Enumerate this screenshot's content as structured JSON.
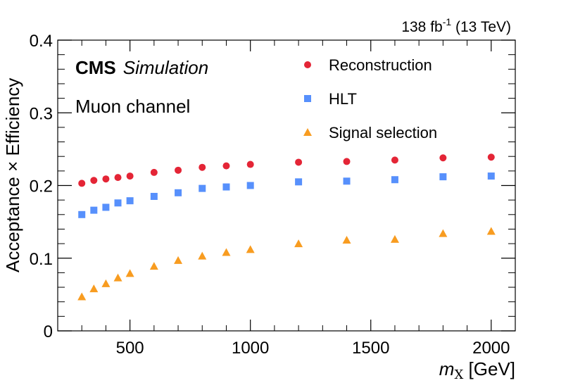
{
  "chart_data": {
    "type": "scatter",
    "title": "",
    "top_right_label": "138 fb",
    "top_right_sup": "-1",
    "top_right_suffix": " (13 TeV)",
    "experiment": "CMS",
    "experiment_extra": "Simulation",
    "channel": "Muon channel",
    "xlabel_var": "m",
    "xlabel_sub": "X",
    "xlabel_unit": " [GeV]",
    "ylabel": "Acceptance × Efficiency",
    "xlim": [
      200,
      2100
    ],
    "ylim": [
      0,
      0.4
    ],
    "x_ticks": [
      500,
      1000,
      1500,
      2000
    ],
    "x_tick_labels": [
      "500",
      "1000",
      "1500",
      "2000"
    ],
    "y_ticks": [
      0,
      0.1,
      0.2,
      0.3,
      0.4
    ],
    "y_tick_labels": [
      "0",
      "0.1",
      "0.2",
      "0.3",
      "0.4"
    ],
    "x": [
      300,
      350,
      400,
      450,
      500,
      600,
      700,
      800,
      900,
      1000,
      1200,
      1400,
      1600,
      1800,
      2000
    ],
    "series": [
      {
        "name": "Reconstruction",
        "marker": "circle",
        "color": "#e42536",
        "values": [
          0.203,
          0.207,
          0.209,
          0.211,
          0.213,
          0.218,
          0.221,
          0.225,
          0.227,
          0.229,
          0.232,
          0.233,
          0.235,
          0.238,
          0.239
        ]
      },
      {
        "name": "HLT",
        "marker": "square",
        "color": "#5790fc",
        "values": [
          0.16,
          0.166,
          0.17,
          0.176,
          0.179,
          0.185,
          0.19,
          0.196,
          0.198,
          0.2,
          0.205,
          0.206,
          0.208,
          0.212,
          0.213
        ]
      },
      {
        "name": "Signal selection",
        "marker": "triangle",
        "color": "#f89c20",
        "values": [
          0.047,
          0.058,
          0.065,
          0.073,
          0.079,
          0.089,
          0.097,
          0.103,
          0.108,
          0.112,
          0.12,
          0.125,
          0.126,
          0.134,
          0.137
        ]
      }
    ],
    "legend_position": "top-right"
  }
}
